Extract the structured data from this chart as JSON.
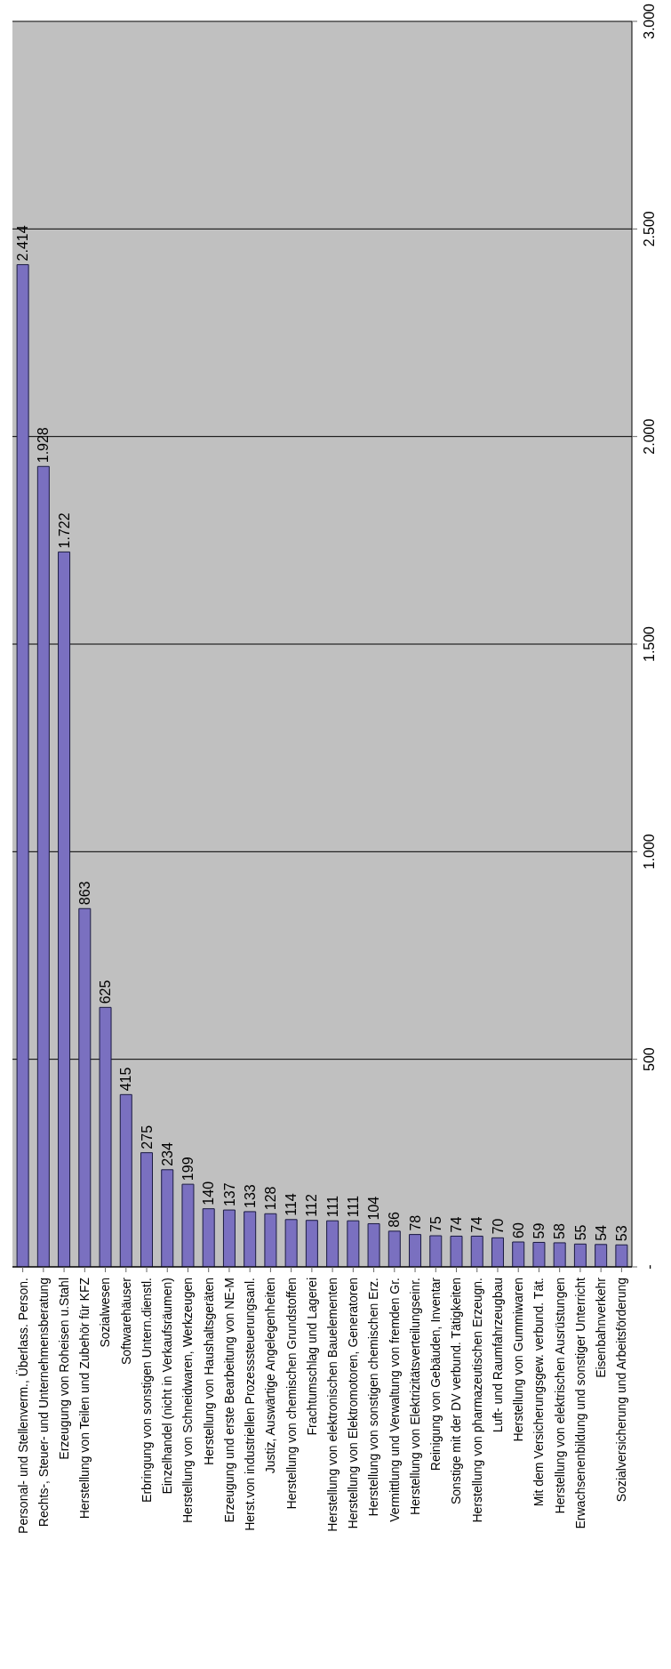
{
  "chart_data": {
    "type": "bar",
    "categories": [
      "Personal- und Stellenverm., Überlass. Person.",
      "Rechts-, Steuer- und Unternehmensberatung",
      "Erzeugung von Roheisen u.Stahl",
      "Herstellung von Teilen und Zubehör für KFZ",
      "Sozialwesen",
      "Softwarehäuser",
      "Erbringung von sonstigen Untern.dienstl.",
      "Einzelhandel (nicht in Verkaufsräumen)",
      "Herstellung von Schneidwaren, Werkzeugen",
      "Herstellung von Haushaltsgeräten",
      "Erzeugung und erste Bearbeitung von NE-M",
      "Herst.von industriellen Prozesssteuerungsanl.",
      "Justiz, Auswärtige Angelegenheiten",
      "Herstellung von chemischen Grundstoffen",
      "Frachtumschlag und Lagerei",
      "Herstellung von elektronischen Bauelementen",
      "Herstellung von Elektromotoren, Generatoren",
      "Herstellung von sonstigen chemischen Erz.",
      "Vermittlung und Verwaltung von fremden Gr.",
      "Herstellung von Elektrizitätsverteilungseinr.",
      "Reinigung von Gebäuden, Inventar",
      "Sonstige mit der DV verbund. Tätigkeiten",
      "Herstellung von pharmazeutischen Erzeugn.",
      "Luft- und Raumfahrzeugbau",
      "Herstellung von Gummiwaren",
      "Mit dem Versicherungsgew. verbund. Tät.",
      "Herstellung von elektrischen Ausrüstungen",
      "Erwachsenenbildung und sonstiger Unterricht",
      "Eisenbahnverkehr",
      "Sozialversicherung und Arbeitsförderung"
    ],
    "values": [
      2414,
      1928,
      1722,
      863,
      625,
      415,
      275,
      234,
      199,
      140,
      137,
      133,
      128,
      114,
      112,
      111,
      111,
      104,
      86,
      78,
      75,
      74,
      74,
      70,
      60,
      59,
      58,
      55,
      54,
      53
    ],
    "value_labels": [
      "2.414",
      "1.928",
      "1.722",
      "863",
      "625",
      "415",
      "275",
      "234",
      "199",
      "140",
      "137",
      "133",
      "128",
      "114",
      "112",
      "111",
      "111",
      "104",
      "86",
      "78",
      "75",
      "74",
      "74",
      "70",
      "60",
      "59",
      "58",
      "55",
      "54",
      "53"
    ],
    "color": "#7a70c0",
    "ylim": [
      0,
      3000
    ],
    "yticks": [
      {
        "value": 0,
        "label": "-"
      },
      {
        "value": 500,
        "label": "500"
      },
      {
        "value": 1000,
        "label": "1.000"
      },
      {
        "value": 1500,
        "label": "1.500"
      },
      {
        "value": 2000,
        "label": "2.000"
      },
      {
        "value": 2500,
        "label": "2.500"
      },
      {
        "value": 3000,
        "label": "3.000"
      }
    ],
    "grid": "y",
    "legend": false
  }
}
